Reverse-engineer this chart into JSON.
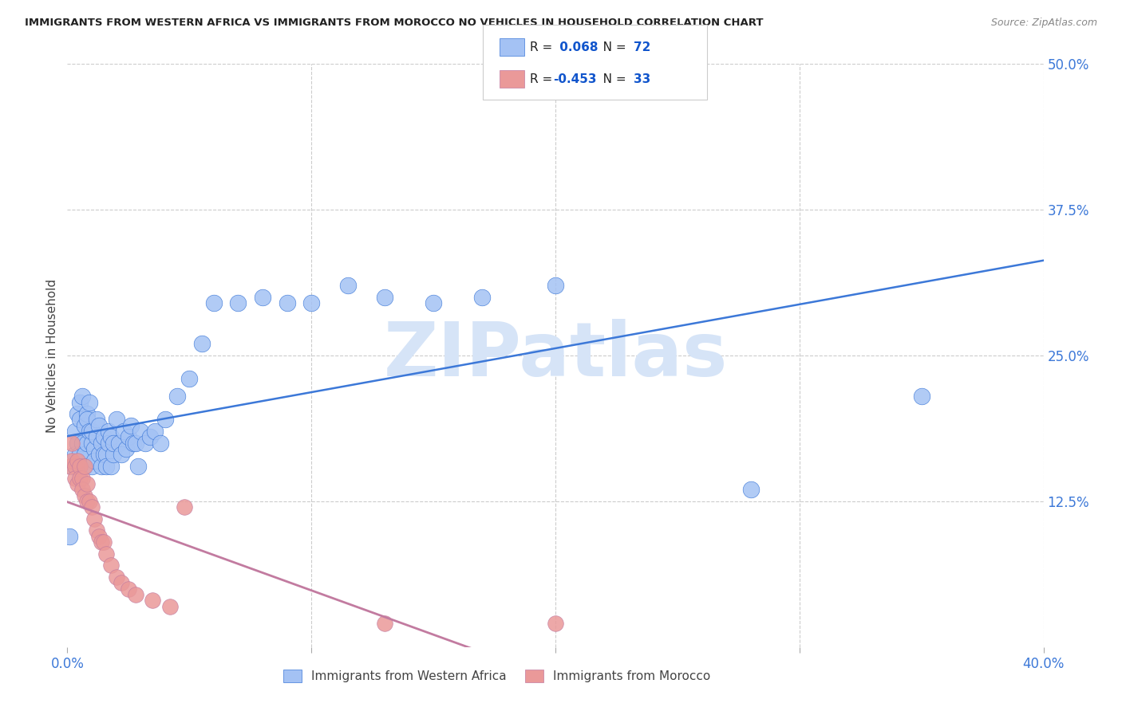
{
  "title": "IMMIGRANTS FROM WESTERN AFRICA VS IMMIGRANTS FROM MOROCCO NO VEHICLES IN HOUSEHOLD CORRELATION CHART",
  "source": "Source: ZipAtlas.com",
  "ylabel": "No Vehicles in Household",
  "xlim": [
    0.0,
    0.4
  ],
  "ylim": [
    0.0,
    0.5
  ],
  "xticks": [
    0.0,
    0.1,
    0.2,
    0.3,
    0.4
  ],
  "xtick_labels": [
    "0.0%",
    "",
    "",
    "",
    "40.0%"
  ],
  "yticks_right": [
    0.0,
    0.125,
    0.25,
    0.375,
    0.5
  ],
  "ytick_labels_right": [
    "",
    "12.5%",
    "25.0%",
    "37.5%",
    "50.0%"
  ],
  "r_blue": 0.068,
  "n_blue": 72,
  "r_pink": -0.453,
  "n_pink": 33,
  "blue_color": "#a4c2f4",
  "pink_color": "#ea9999",
  "blue_line_color": "#3c78d8",
  "pink_line_color": "#c27ba0",
  "watermark": "ZIPatlas",
  "watermark_color": "#d6e4f7",
  "legend_r_color": "#1155cc",
  "background_color": "#ffffff",
  "grid_color": "#cccccc",
  "blue_x": [
    0.001,
    0.002,
    0.003,
    0.003,
    0.004,
    0.004,
    0.005,
    0.005,
    0.005,
    0.006,
    0.006,
    0.006,
    0.007,
    0.007,
    0.007,
    0.008,
    0.008,
    0.008,
    0.009,
    0.009,
    0.01,
    0.01,
    0.01,
    0.011,
    0.011,
    0.012,
    0.012,
    0.013,
    0.013,
    0.014,
    0.014,
    0.015,
    0.015,
    0.016,
    0.016,
    0.017,
    0.017,
    0.018,
    0.018,
    0.019,
    0.019,
    0.02,
    0.021,
    0.022,
    0.023,
    0.024,
    0.025,
    0.026,
    0.027,
    0.028,
    0.029,
    0.03,
    0.032,
    0.034,
    0.036,
    0.038,
    0.04,
    0.045,
    0.05,
    0.055,
    0.06,
    0.07,
    0.08,
    0.09,
    0.1,
    0.115,
    0.13,
    0.15,
    0.17,
    0.2,
    0.28,
    0.35
  ],
  "blue_y": [
    0.095,
    0.155,
    0.185,
    0.165,
    0.2,
    0.175,
    0.195,
    0.21,
    0.165,
    0.175,
    0.215,
    0.155,
    0.19,
    0.165,
    0.155,
    0.2,
    0.175,
    0.195,
    0.185,
    0.21,
    0.175,
    0.155,
    0.185,
    0.17,
    0.16,
    0.195,
    0.18,
    0.19,
    0.165,
    0.175,
    0.155,
    0.165,
    0.18,
    0.165,
    0.155,
    0.185,
    0.175,
    0.18,
    0.155,
    0.165,
    0.175,
    0.195,
    0.175,
    0.165,
    0.185,
    0.17,
    0.18,
    0.19,
    0.175,
    0.175,
    0.155,
    0.185,
    0.175,
    0.18,
    0.185,
    0.175,
    0.195,
    0.215,
    0.23,
    0.26,
    0.295,
    0.295,
    0.3,
    0.295,
    0.295,
    0.31,
    0.3,
    0.295,
    0.3,
    0.31,
    0.135,
    0.215
  ],
  "pink_x": [
    0.001,
    0.002,
    0.002,
    0.003,
    0.003,
    0.004,
    0.004,
    0.005,
    0.005,
    0.006,
    0.006,
    0.007,
    0.007,
    0.008,
    0.008,
    0.009,
    0.01,
    0.011,
    0.012,
    0.013,
    0.014,
    0.015,
    0.016,
    0.018,
    0.02,
    0.022,
    0.025,
    0.028,
    0.035,
    0.042,
    0.048,
    0.13,
    0.2
  ],
  "pink_y": [
    0.155,
    0.175,
    0.16,
    0.155,
    0.145,
    0.16,
    0.14,
    0.155,
    0.145,
    0.145,
    0.135,
    0.155,
    0.13,
    0.14,
    0.125,
    0.125,
    0.12,
    0.11,
    0.1,
    0.095,
    0.09,
    0.09,
    0.08,
    0.07,
    0.06,
    0.055,
    0.05,
    0.045,
    0.04,
    0.035,
    0.12,
    0.02,
    0.02
  ]
}
